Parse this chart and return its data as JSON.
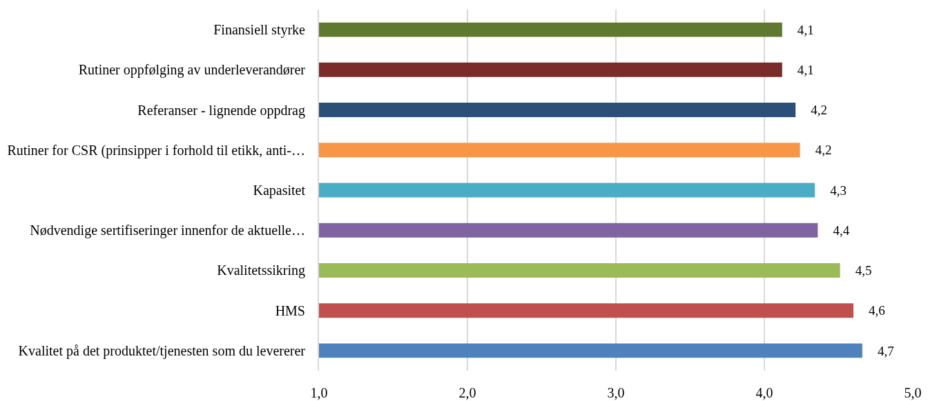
{
  "chart_data": {
    "type": "bar",
    "orientation": "horizontal",
    "categories": [
      "Finansiell styrke",
      "Rutiner oppfølging av underleverandører",
      "Referanser - lignende oppdrag",
      "Rutiner for CSR (prinsipper i forhold til etikk, anti-…",
      "Kapasitet",
      "Nødvendige sertifiseringer innenfor de aktuelle…",
      "Kvalitetssikring",
      "HMS",
      "Kvalitet på det produktet/tjenesten som du levererer"
    ],
    "values": [
      4.12,
      4.12,
      4.21,
      4.24,
      4.34,
      4.36,
      4.51,
      4.6,
      4.66
    ],
    "colors": [
      "#607930",
      "#7a2c2b",
      "#2b4f76",
      "#f79646",
      "#4bacc6",
      "#8064a2",
      "#9bbb59",
      "#c0504d",
      "#4f81bd"
    ],
    "value_labels": [
      "4,1",
      "4,1",
      "4,2",
      "4,2",
      "4,3",
      "4,4",
      "4,5",
      "4,6",
      "4,7"
    ],
    "xlim": [
      1,
      5
    ],
    "xticks": [
      {
        "value": 1,
        "label": "1,0"
      },
      {
        "value": 2,
        "label": "2,0"
      },
      {
        "value": 3,
        "label": "3,0"
      },
      {
        "value": 4,
        "label": "4,0"
      },
      {
        "value": 5,
        "label": "5,0"
      }
    ],
    "grid": "x"
  }
}
